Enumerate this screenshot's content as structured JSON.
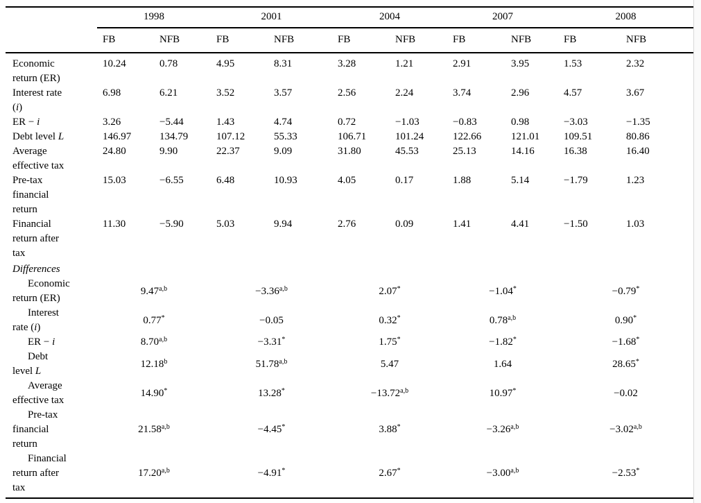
{
  "table": {
    "years": [
      "1998",
      "2001",
      "2004",
      "2007",
      "2008"
    ],
    "subheaders": [
      "FB",
      "NFB"
    ],
    "levels": {
      "rows": [
        {
          "label": [
            {
              "t": "Economic"
            },
            {
              "br": true
            },
            {
              "t": "return (ER)"
            }
          ],
          "values": [
            "10.24",
            "0.78",
            "4.95",
            "8.31",
            "3.28",
            "1.21",
            "2.91",
            "3.95",
            "1.53",
            "2.32"
          ]
        },
        {
          "label": [
            {
              "t": "Interest rate"
            },
            {
              "br": true
            },
            {
              "t": "("
            },
            {
              "t": "i",
              "it": true
            },
            {
              "t": ")"
            }
          ],
          "values": [
            "6.98",
            "6.21",
            "3.52",
            "3.57",
            "2.56",
            "2.24",
            "3.74",
            "2.96",
            "4.57",
            "3.67"
          ]
        },
        {
          "label": [
            {
              "t": "ER − "
            },
            {
              "t": "i",
              "it": true
            }
          ],
          "values": [
            "3.26",
            "−5.44",
            "1.43",
            "4.74",
            "0.72",
            "−1.03",
            "−0.83",
            "0.98",
            "−3.03",
            "−1.35"
          ]
        },
        {
          "label": [
            {
              "t": "Debt level "
            },
            {
              "t": "L",
              "it": true
            }
          ],
          "values": [
            "146.97",
            "134.79",
            "107.12",
            "55.33",
            "106.71",
            "101.24",
            "122.66",
            "121.01",
            "109.51",
            "80.86"
          ]
        },
        {
          "label": [
            {
              "t": "Average"
            },
            {
              "br": true
            },
            {
              "t": "effective tax"
            }
          ],
          "values": [
            "24.80",
            "9.90",
            "22.37",
            "9.09",
            "31.80",
            "45.53",
            "25.13",
            "14.16",
            "16.38",
            "16.40"
          ]
        },
        {
          "label": [
            {
              "t": "Pre-tax"
            },
            {
              "br": true
            },
            {
              "t": "financial"
            },
            {
              "br": true
            },
            {
              "t": "return"
            }
          ],
          "values": [
            "15.03",
            "−6.55",
            "6.48",
            "10.93",
            "4.05",
            "0.17",
            "1.88",
            "5.14",
            "−1.79",
            "1.23"
          ]
        },
        {
          "label": [
            {
              "t": "Financial"
            },
            {
              "br": true
            },
            {
              "t": "return after"
            },
            {
              "br": true
            },
            {
              "t": "tax"
            }
          ],
          "values": [
            "11.30",
            "−5.90",
            "5.03",
            "9.94",
            "2.76",
            "0.09",
            "1.41",
            "4.41",
            "−1.50",
            "1.03"
          ]
        }
      ]
    },
    "differences": {
      "header": "Differences",
      "rows": [
        {
          "label": [
            {
              "t": "Economic"
            },
            {
              "br": true
            },
            {
              "t": "return (ER)"
            }
          ],
          "values": [
            {
              "v": "9.47",
              "sup": "a,b"
            },
            {
              "v": "−3.36",
              "sup": "a,b"
            },
            {
              "v": "2.07",
              "sup": "*"
            },
            {
              "v": "−1.04",
              "sup": "*"
            },
            {
              "v": "−0.79",
              "sup": "*"
            }
          ]
        },
        {
          "label": [
            {
              "t": "Interest"
            },
            {
              "br": true
            },
            {
              "t": "rate ("
            },
            {
              "t": "i",
              "it": true
            },
            {
              "t": ")"
            }
          ],
          "values": [
            {
              "v": "0.77",
              "sup": "*"
            },
            {
              "v": "−0.05"
            },
            {
              "v": "0.32",
              "sup": "*"
            },
            {
              "v": "0.78",
              "sup": "a,b"
            },
            {
              "v": "0.90",
              "sup": "*"
            }
          ]
        },
        {
          "label": [
            {
              "t": "ER − "
            },
            {
              "t": "i",
              "it": true
            }
          ],
          "values": [
            {
              "v": "8.70",
              "sup": "a,b"
            },
            {
              "v": "−3.31",
              "sup": "*"
            },
            {
              "v": "1.75",
              "sup": "*"
            },
            {
              "v": "−1.82",
              "sup": "*"
            },
            {
              "v": "−1.68",
              "sup": "*"
            }
          ]
        },
        {
          "label": [
            {
              "t": "Debt"
            },
            {
              "br": true
            },
            {
              "t": "level "
            },
            {
              "t": "L",
              "it": true
            }
          ],
          "values": [
            {
              "v": "12.18",
              "sup": "b"
            },
            {
              "v": "51.78",
              "sup": "a,b"
            },
            {
              "v": "5.47"
            },
            {
              "v": "1.64"
            },
            {
              "v": "28.65",
              "sup": "*"
            }
          ]
        },
        {
          "label": [
            {
              "t": "Average"
            },
            {
              "br": true
            },
            {
              "t": "effective tax"
            }
          ],
          "values": [
            {
              "v": "14.90",
              "sup": "*"
            },
            {
              "v": "13.28",
              "sup": "*"
            },
            {
              "v": "−13.72",
              "sup": "a,b"
            },
            {
              "v": "10.97",
              "sup": "*"
            },
            {
              "v": "−0.02"
            }
          ]
        },
        {
          "label": [
            {
              "t": "Pre-tax"
            },
            {
              "br": true
            },
            {
              "t": "financial"
            },
            {
              "br": true
            },
            {
              "t": "return"
            }
          ],
          "values": [
            {
              "v": "21.58",
              "sup": "a,b"
            },
            {
              "v": "−4.45",
              "sup": "*"
            },
            {
              "v": "3.88",
              "sup": "*"
            },
            {
              "v": "−3.26",
              "sup": "a,b"
            },
            {
              "v": "−3.02",
              "sup": "a,b"
            }
          ]
        },
        {
          "label": [
            {
              "t": "Financial"
            },
            {
              "br": true
            },
            {
              "t": "return after"
            },
            {
              "br": true
            },
            {
              "t": "tax"
            }
          ],
          "values": [
            {
              "v": "17.20",
              "sup": "a,b"
            },
            {
              "v": "−4.91",
              "sup": "*"
            },
            {
              "v": "2.67",
              "sup": "*"
            },
            {
              "v": "−3.00",
              "sup": "a,b"
            },
            {
              "v": "−2.53",
              "sup": "*"
            }
          ]
        }
      ]
    }
  },
  "colors": {
    "rule": "#000000",
    "page_edge": "#d9d9d9",
    "background": "#ffffff"
  }
}
